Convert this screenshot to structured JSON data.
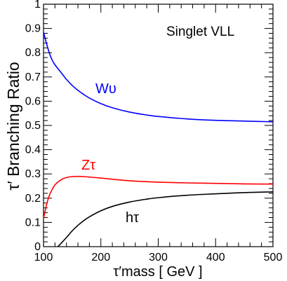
{
  "chart_data": {
    "type": "line",
    "title": "",
    "annotation": "Singlet VLL",
    "xlabel": "τ′mass [ GeV ]",
    "ylabel": "τ′ Branching Ratio",
    "xlim": [
      100,
      500
    ],
    "ylim": [
      0,
      1
    ],
    "x_ticks": [
      "100",
      "200",
      "300",
      "400",
      "500"
    ],
    "y_ticks": [
      "0",
      "0.1",
      "0.2",
      "0.3",
      "0.4",
      "0.5",
      "0.6",
      "0.7",
      "0.8",
      "0.9",
      "1"
    ],
    "grid": false,
    "series": [
      {
        "name": "Wυ",
        "color": "#0000ff",
        "x": [
          100,
          105,
          110,
          115,
          120,
          130,
          140,
          150,
          160,
          170,
          180,
          200,
          220,
          250,
          280,
          300,
          350,
          400,
          450,
          500
        ],
        "y": [
          0.885,
          0.84,
          0.8,
          0.77,
          0.75,
          0.72,
          0.69,
          0.665,
          0.645,
          0.628,
          0.613,
          0.59,
          0.573,
          0.555,
          0.543,
          0.537,
          0.527,
          0.521,
          0.518,
          0.515
        ]
      },
      {
        "name": "Zτ",
        "color": "#ff0000",
        "x": [
          100,
          105,
          110,
          115,
          120,
          130,
          140,
          150,
          160,
          170,
          180,
          200,
          220,
          250,
          280,
          300,
          350,
          400,
          450,
          500
        ],
        "y": [
          0.115,
          0.17,
          0.21,
          0.235,
          0.255,
          0.275,
          0.285,
          0.289,
          0.29,
          0.289,
          0.287,
          0.283,
          0.278,
          0.272,
          0.268,
          0.266,
          0.263,
          0.261,
          0.259,
          0.258
        ]
      },
      {
        "name": "hτ",
        "color": "#000000",
        "x": [
          125,
          130,
          140,
          150,
          160,
          170,
          180,
          200,
          220,
          250,
          280,
          300,
          350,
          400,
          450,
          500
        ],
        "y": [
          0.0,
          0.012,
          0.038,
          0.065,
          0.088,
          0.107,
          0.123,
          0.148,
          0.166,
          0.184,
          0.196,
          0.202,
          0.212,
          0.218,
          0.223,
          0.226
        ]
      }
    ]
  }
}
